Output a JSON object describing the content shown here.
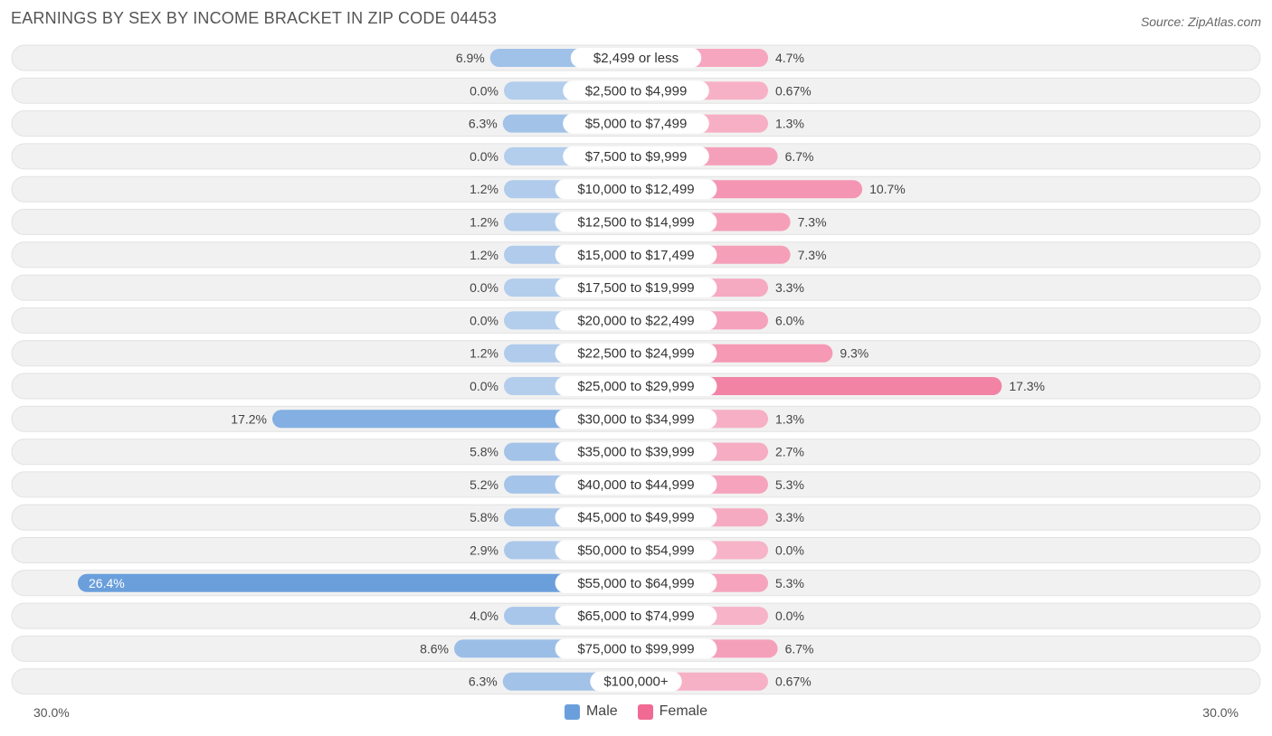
{
  "title": "EARNINGS BY SEX BY INCOME BRACKET IN ZIP CODE 04453",
  "source": "Source: ZipAtlas.com",
  "axis": {
    "left_label": "30.0%",
    "right_label": "30.0%"
  },
  "legend": {
    "male_label": "Male",
    "female_label": "Female",
    "male_color": "#6a9fdc",
    "female_color": "#f06a93"
  },
  "chart_data": {
    "type": "bar",
    "orientation": "horizontal-diverging",
    "title": "EARNINGS BY SEX BY INCOME BRACKET IN ZIP CODE 04453",
    "xlim": [
      -30,
      30
    ],
    "categories": [
      "$2,499 or less",
      "$2,500 to $4,999",
      "$5,000 to $7,499",
      "$7,500 to $9,999",
      "$10,000 to $12,499",
      "$12,500 to $14,999",
      "$15,000 to $17,499",
      "$17,500 to $19,999",
      "$20,000 to $22,499",
      "$22,500 to $24,999",
      "$25,000 to $29,999",
      "$30,000 to $34,999",
      "$35,000 to $39,999",
      "$40,000 to $44,999",
      "$45,000 to $49,999",
      "$50,000 to $54,999",
      "$55,000 to $64,999",
      "$65,000 to $74,999",
      "$75,000 to $99,999",
      "$100,000+"
    ],
    "series": [
      {
        "name": "Male",
        "values": [
          6.9,
          0.0,
          6.3,
          0.0,
          1.2,
          1.2,
          1.2,
          0.0,
          0.0,
          1.2,
          0.0,
          17.2,
          5.8,
          5.2,
          5.8,
          2.9,
          26.4,
          4.0,
          8.6,
          6.3
        ],
        "labels": [
          "6.9%",
          "0.0%",
          "6.3%",
          "0.0%",
          "1.2%",
          "1.2%",
          "1.2%",
          "0.0%",
          "0.0%",
          "1.2%",
          "0.0%",
          "17.2%",
          "5.8%",
          "5.2%",
          "5.8%",
          "2.9%",
          "26.4%",
          "4.0%",
          "8.6%",
          "6.3%"
        ]
      },
      {
        "name": "Female",
        "values": [
          4.7,
          0.67,
          1.3,
          6.7,
          10.7,
          7.3,
          7.3,
          3.3,
          6.0,
          9.3,
          17.3,
          1.3,
          2.7,
          5.3,
          3.3,
          0.0,
          5.3,
          0.0,
          6.7,
          0.67
        ],
        "labels": [
          "4.7%",
          "0.67%",
          "1.3%",
          "6.7%",
          "10.7%",
          "7.3%",
          "7.3%",
          "3.3%",
          "6.0%",
          "9.3%",
          "17.3%",
          "1.3%",
          "2.7%",
          "5.3%",
          "3.3%",
          "0.0%",
          "5.3%",
          "0.0%",
          "6.7%",
          "0.67%"
        ]
      }
    ]
  }
}
